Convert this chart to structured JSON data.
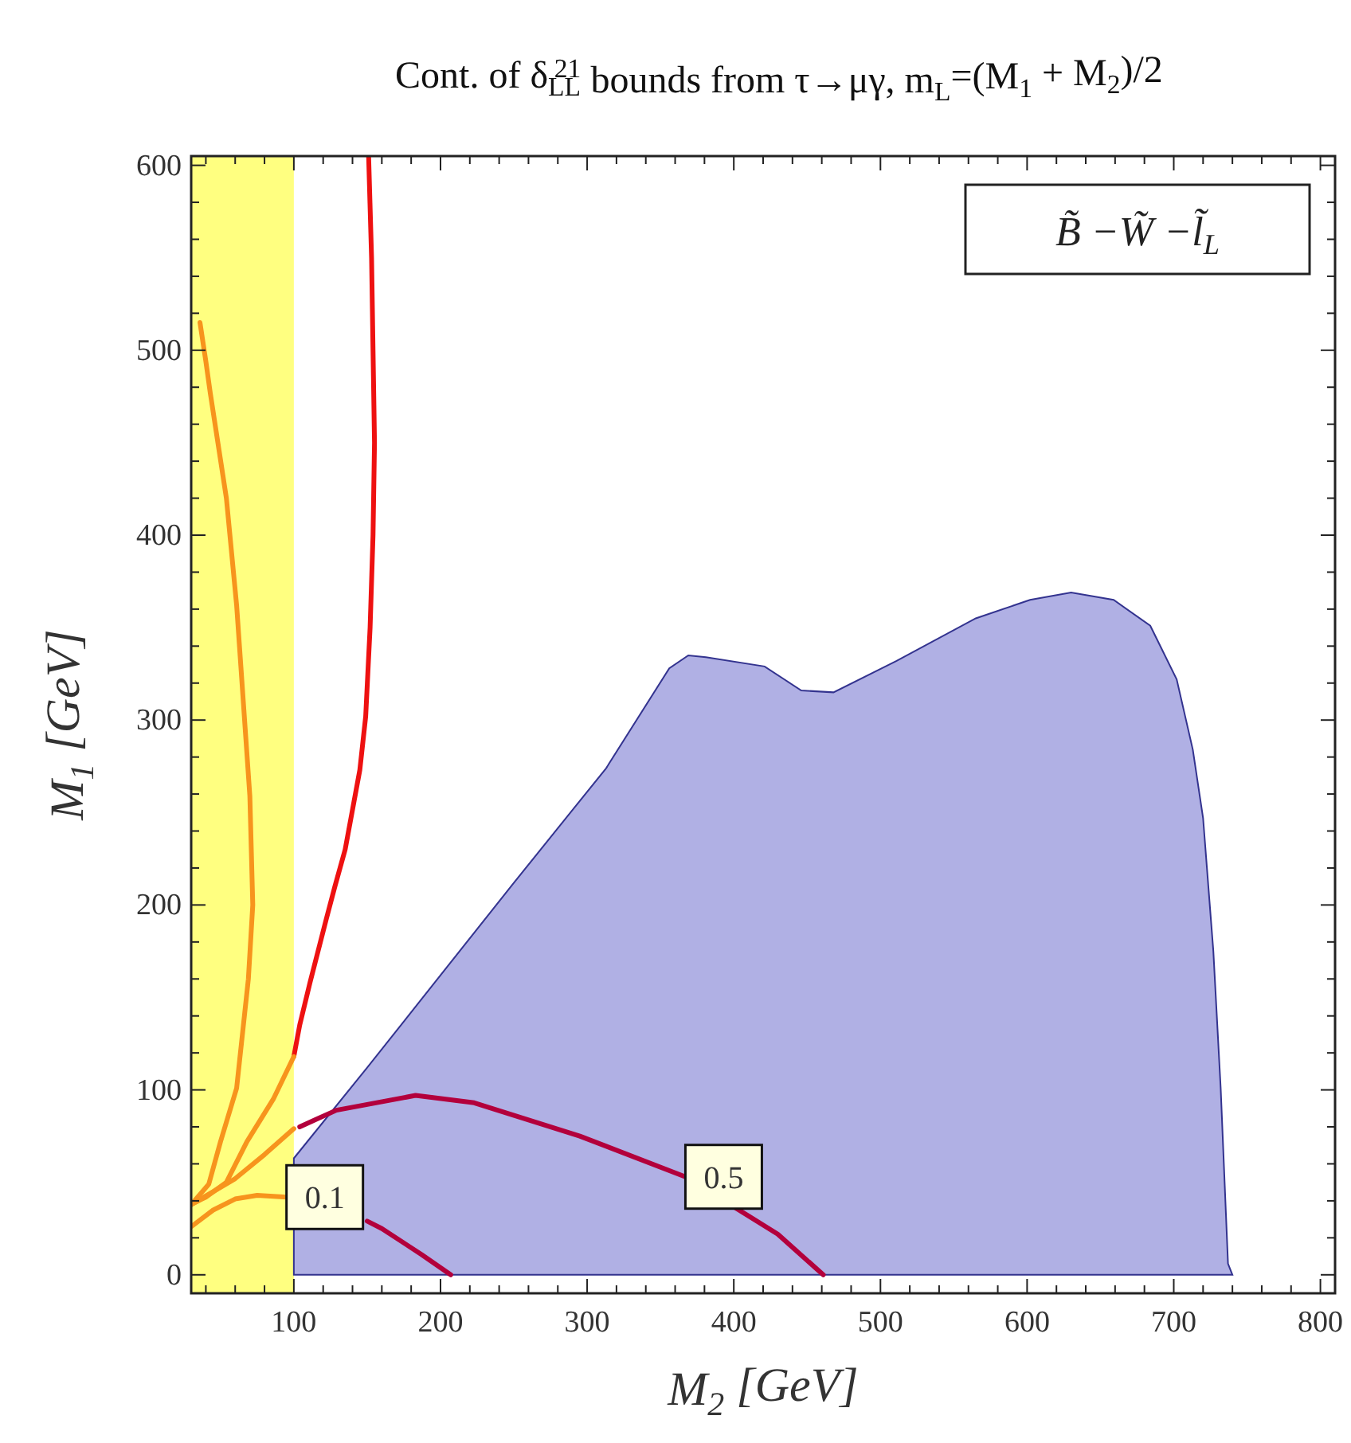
{
  "chart_data": {
    "type": "line",
    "title": "Cont. of δ$_{LL}$$^{21}$ bounds from τ→μγ, m$_{L}$=(M$_{1}$ + M$_{2}$)/2",
    "xlabel": "M$_{2}$ [GeV]",
    "ylabel": "M$_{1}$ [GeV]",
    "xlim": [
      30,
      810
    ],
    "ylim": [
      -10,
      605
    ],
    "xticks": [
      {
        "value": 40,
        "label": null
      },
      {
        "value": 60,
        "label": null
      },
      {
        "value": 80,
        "label": null
      },
      100,
      {
        "value": 120,
        "label": null
      },
      {
        "value": 140,
        "label": null
      },
      {
        "value": 160,
        "label": null
      },
      {
        "value": 180,
        "label": null
      },
      200,
      {
        "value": 220,
        "label": null
      },
      {
        "value": 240,
        "label": null
      },
      {
        "value": 260,
        "label": null
      },
      {
        "value": 280,
        "label": null
      },
      300,
      {
        "value": 320,
        "label": null
      },
      {
        "value": 340,
        "label": null
      },
      {
        "value": 360,
        "label": null
      },
      {
        "value": 380,
        "label": null
      },
      400,
      {
        "value": 420,
        "label": null
      },
      {
        "value": 440,
        "label": null
      },
      {
        "value": 460,
        "label": null
      },
      {
        "value": 480,
        "label": null
      },
      500,
      {
        "value": 520,
        "label": null
      },
      {
        "value": 540,
        "label": null
      },
      {
        "value": 560,
        "label": null
      },
      {
        "value": 580,
        "label": null
      },
      600,
      {
        "value": 620,
        "label": null
      },
      {
        "value": 640,
        "label": null
      },
      {
        "value": 660,
        "label": null
      },
      {
        "value": 680,
        "label": null
      },
      700,
      {
        "value": 720,
        "label": null
      },
      {
        "value": 740,
        "label": null
      },
      {
        "value": 760,
        "label": null
      },
      {
        "value": 780,
        "label": null
      },
      800
    ],
    "yticks": [
      0,
      {
        "value": 20,
        "label": null
      },
      {
        "value": 40,
        "label": null
      },
      {
        "value": 60,
        "label": null
      },
      {
        "value": 80,
        "label": null
      },
      100,
      {
        "value": 120,
        "label": null
      },
      {
        "value": 140,
        "label": null
      },
      {
        "value": 160,
        "label": null
      },
      {
        "value": 180,
        "label": null
      },
      200,
      {
        "value": 220,
        "label": null
      },
      {
        "value": 240,
        "label": null
      },
      {
        "value": 260,
        "label": null
      },
      {
        "value": 280,
        "label": null
      },
      300,
      {
        "value": 320,
        "label": null
      },
      {
        "value": 340,
        "label": null
      },
      {
        "value": 360,
        "label": null
      },
      {
        "value": 380,
        "label": null
      },
      400,
      {
        "value": 420,
        "label": null
      },
      {
        "value": 440,
        "label": null
      },
      {
        "value": 460,
        "label": null
      },
      {
        "value": 480,
        "label": null
      },
      500,
      {
        "value": 520,
        "label": null
      },
      {
        "value": 540,
        "label": null
      },
      {
        "value": 560,
        "label": null
      },
      {
        "value": 580,
        "label": null
      },
      600
    ],
    "grid": false,
    "marker": "none",
    "line_style": "solid",
    "bands": [
      {
        "axis": "x",
        "from": 30,
        "to": 100,
        "color": "#ffff80"
      }
    ],
    "series": [
      {
        "type": "area",
        "color": "#b0b0e4",
        "x": [
          100,
          150,
          200,
          250,
          313,
          356,
          369,
          381,
          421,
          446,
          468,
          511,
          565,
          602,
          630,
          659,
          684,
          702,
          713,
          720,
          727,
          732,
          737,
          740
        ],
        "values": [
          63,
          112,
          162,
          212,
          274,
          328,
          335,
          334,
          329,
          316,
          315,
          332,
          355,
          365,
          369,
          365,
          351,
          322,
          284,
          247,
          175,
          101,
          6,
          0
        ]
      },
      {
        "color": "#ee1111",
        "x": [
          151,
          153,
          154,
          155,
          154,
          152,
          149,
          145,
          135,
          128,
          122,
          111,
          104,
          100
        ],
        "values": [
          605,
          550,
          500,
          450,
          400,
          350,
          302,
          273,
          230,
          210,
          192,
          158,
          135,
          118
        ]
      },
      {
        "color": "#f7941d",
        "x": [
          100,
          86,
          68,
          54,
          40,
          30
        ],
        "values": [
          118,
          95,
          72,
          50,
          42,
          38
        ]
      },
      {
        "color": "#f7941d",
        "x": [
          36,
          40,
          43,
          54,
          61,
          70,
          72,
          69,
          61,
          50,
          42,
          30
        ],
        "values": [
          515,
          494,
          477,
          420,
          362,
          259,
          200,
          160,
          101,
          72,
          49,
          38
        ]
      },
      {
        "color": "#f7941d",
        "x": [
          30,
          45,
          60,
          80,
          100
        ],
        "values": [
          38,
          45,
          52,
          65,
          79
        ]
      },
      {
        "color": "#b3003c",
        "x": [
          104,
          115,
          129,
          183,
          223,
          295,
          367,
          430,
          461
        ],
        "values": [
          80,
          84,
          89,
          97,
          93,
          75,
          53,
          22,
          0
        ]
      },
      {
        "color": "#f7941d",
        "x": [
          30,
          45,
          60,
          75,
          95
        ],
        "values": [
          26,
          35,
          41,
          43,
          42
        ]
      },
      {
        "color": "#b3003c",
        "x": [
          150,
          160,
          187,
          207
        ],
        "values": [
          29,
          25,
          11,
          0
        ]
      }
    ],
    "annotations": [
      {
        "text": "0.1",
        "x": 95,
        "y": 42
      },
      {
        "text": "0.5",
        "x": 367,
        "y": 53
      },
      "B̃ −W̃ −l̃$_{L}$"
    ]
  }
}
